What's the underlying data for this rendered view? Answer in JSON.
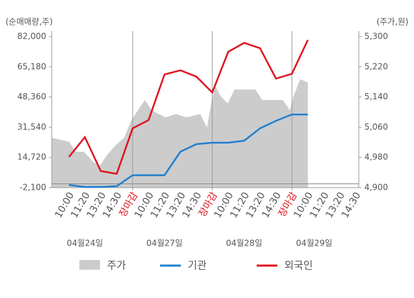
{
  "chart_data": {
    "type": "line",
    "ylabel": "(순매매량,주)",
    "y2label": "(주가,원)",
    "categories": [
      "10:00",
      "11:20",
      "13:20",
      "14:30",
      "장마감",
      "10:00",
      "11:20",
      "13:20",
      "14:30",
      "장마감",
      "10:00",
      "11:20",
      "13:20",
      "14:30",
      "장마감",
      "10:00",
      "11:20",
      "13:20",
      "14:30"
    ],
    "dates": [
      "04월24일",
      "04월27일",
      "04월28일",
      "04월29일"
    ],
    "xlim": [
      -1.08,
      18.2
    ],
    "ylim": [
      -2100,
      82000
    ],
    "yticks": [
      {
        "value": 82000,
        "label": "82,000"
      },
      {
        "value": 65180,
        "label": "65,180"
      },
      {
        "value": 48360,
        "label": "48,360"
      },
      {
        "value": 31540,
        "label": "31,540"
      },
      {
        "value": 14720,
        "label": "14,720"
      },
      {
        "value": -2100,
        "label": "-2,100"
      }
    ],
    "y2lim": [
      4900,
      5300
    ],
    "y2ticks": [
      {
        "value": 5300,
        "label": "5,300"
      },
      {
        "value": 5220,
        "label": "5,220"
      },
      {
        "value": 5140,
        "label": "5,140"
      },
      {
        "value": 5060,
        "label": "5,060"
      },
      {
        "value": 4980,
        "label": "4,980"
      },
      {
        "value": 4900,
        "label": "4,900"
      }
    ],
    "price": {
      "name": "주가",
      "color": "#cccccc",
      "axis": "y2",
      "x": [
        -1.08,
        0,
        0.43,
        0.95,
        1.52,
        1.95,
        2.38,
        2.95,
        3.47,
        3.9,
        4.33,
        4.77,
        5.2,
        5.64,
        6.07,
        6.72,
        7.37,
        8.24,
        8.67,
        8.93,
        9.19,
        9.54,
        9.97,
        10.4,
        11.05,
        11.7,
        12.14,
        12.79,
        13.44,
        13.87,
        14.09,
        14.52,
        15.0
      ],
      "values": [
        5032,
        5022,
        4995,
        4995,
        4968,
        4958,
        4986,
        5013,
        5032,
        5077,
        5105,
        5132,
        5105,
        5095,
        5086,
        5095,
        5086,
        5095,
        5059,
        5123,
        5169,
        5141,
        5123,
        5160,
        5160,
        5160,
        5132,
        5132,
        5132,
        5105,
        5141,
        5187,
        5178
      ]
    },
    "series": [
      {
        "name": "기관",
        "color": "#1f7fd0",
        "values": [
          -600,
          -1700,
          -1700,
          -1300,
          4800,
          4800,
          4800,
          17900,
          22100,
          22900,
          22900,
          24000,
          30900,
          35100,
          38600,
          38600,
          null,
          null,
          null
        ]
      },
      {
        "name": "외국인",
        "color": "#e0141e",
        "values": [
          15000,
          26000,
          7100,
          5600,
          30900,
          35500,
          60900,
          63200,
          59700,
          50900,
          73500,
          78500,
          75500,
          58600,
          61300,
          80100,
          null,
          null,
          null
        ]
      }
    ]
  }
}
